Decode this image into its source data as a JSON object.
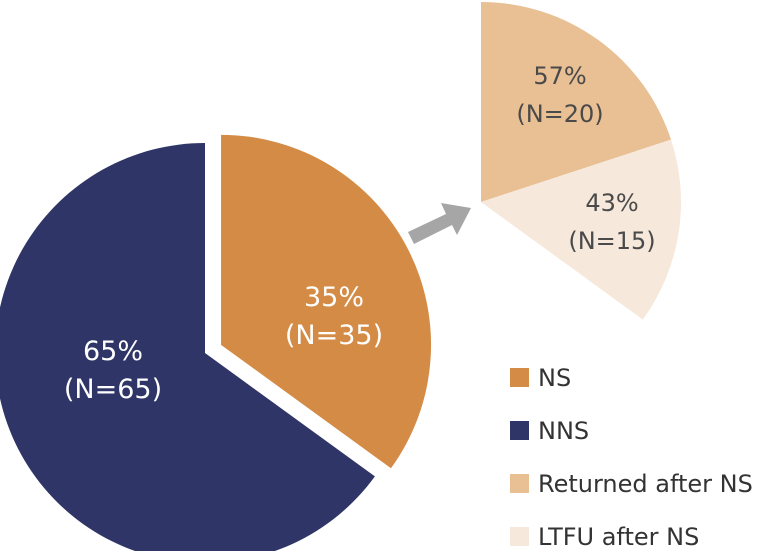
{
  "chart_data": [
    {
      "type": "pie",
      "slices": [
        {
          "key": "nns",
          "label": "NNS",
          "percent": 65,
          "n_label": "(N=65)",
          "percent_label": "65%",
          "color": "#2f3566"
        },
        {
          "key": "ns",
          "label": "NS",
          "percent": 35,
          "n_label": "(N=35)",
          "percent_label": "35%",
          "color": "#d48b45",
          "exploded": true
        }
      ]
    },
    {
      "type": "pie",
      "subset_of": "NS",
      "slices": [
        {
          "key": "returned",
          "label": "Returned after NS",
          "percent": 57,
          "n_label": "(N=20)",
          "percent_label": "57%",
          "color": "#e9bf94"
        },
        {
          "key": "ltfu",
          "label": "LTFU after NS",
          "percent": 43,
          "n_label": "(N=15)",
          "percent_label": "43%",
          "color": "#f6e8db"
        }
      ]
    }
  ],
  "legend": {
    "placement": "bottom-right",
    "items": [
      {
        "label": "NS",
        "color": "#d48b45"
      },
      {
        "label": "NNS",
        "color": "#2f3566"
      },
      {
        "label": "Returned after NS",
        "color": "#e9bf94"
      },
      {
        "label": "LTFU after NS",
        "color": "#f6e8db"
      }
    ]
  },
  "arrow_color": "#a6a6a6"
}
